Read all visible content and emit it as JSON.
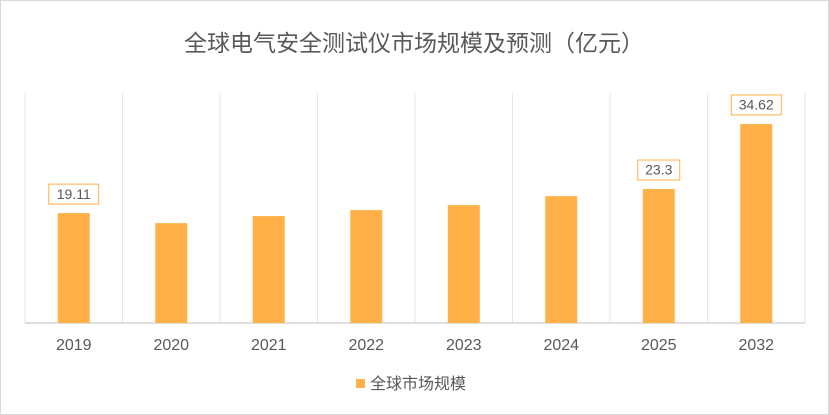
{
  "chart_data": {
    "type": "bar",
    "title": "全球电气安全测试仪市场规模及预测（亿元）",
    "categories": [
      "2019",
      "2020",
      "2021",
      "2022",
      "2023",
      "2024",
      "2025",
      "2032"
    ],
    "series": [
      {
        "name": "全球市场规模",
        "color": "#ffb046",
        "values": [
          19.11,
          17.37,
          18.59,
          19.63,
          20.5,
          22.06,
          23.3,
          34.62
        ],
        "value_labels": [
          "19.11",
          null,
          null,
          null,
          null,
          null,
          "23.3",
          "34.62"
        ]
      }
    ],
    "ylim": [
      0,
      40
    ],
    "legend": "bottom"
  }
}
